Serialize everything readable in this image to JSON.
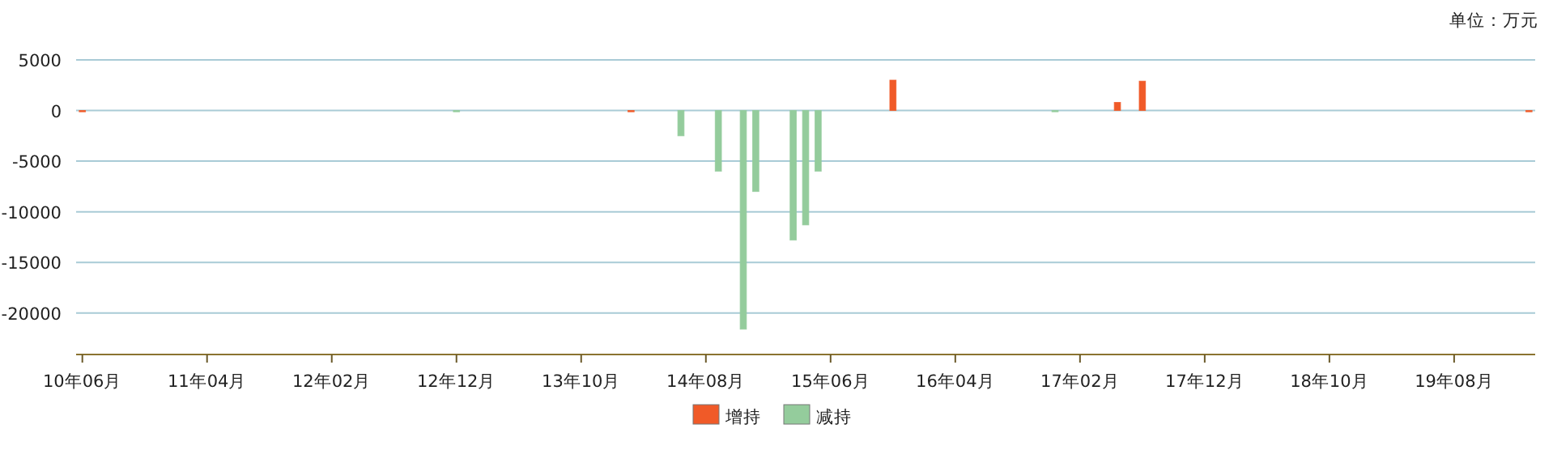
{
  "chart_data": {
    "type": "bar",
    "grid": "y",
    "legend": "bottom",
    "annotations": [
      "单位：万元"
    ],
    "ylim": [
      -24100,
      5000
    ],
    "yticks": [
      5000,
      0,
      -5000,
      -10000,
      -15000,
      -20000
    ],
    "categories": [
      "10年06月",
      null,
      null,
      null,
      null,
      null,
      null,
      null,
      null,
      null,
      "11年04月",
      null,
      null,
      null,
      null,
      null,
      null,
      null,
      null,
      null,
      "12年02月",
      null,
      null,
      null,
      null,
      null,
      null,
      null,
      null,
      null,
      "12年12月",
      null,
      null,
      null,
      null,
      null,
      null,
      null,
      null,
      null,
      "13年10月",
      null,
      null,
      null,
      null,
      null,
      null,
      null,
      null,
      null,
      "14年08月",
      null,
      null,
      null,
      null,
      null,
      null,
      null,
      null,
      null,
      "15年06月",
      null,
      null,
      null,
      null,
      null,
      null,
      null,
      null,
      null,
      "16年04月",
      null,
      null,
      null,
      null,
      null,
      null,
      null,
      null,
      null,
      "17年02月",
      null,
      null,
      null,
      null,
      null,
      null,
      null,
      null,
      null,
      "17年12月",
      null,
      null,
      null,
      null,
      null,
      null,
      null,
      null,
      null,
      "18年10月",
      null,
      null,
      null,
      null,
      null,
      null,
      null,
      null,
      null,
      "19年08月",
      null,
      null,
      null,
      null,
      null,
      null
    ],
    "series": [
      {
        "name": "增持",
        "color": "#f05a28",
        "values": [
          0,
          null,
          null,
          null,
          null,
          null,
          null,
          null,
          null,
          null,
          null,
          null,
          null,
          null,
          null,
          null,
          null,
          null,
          null,
          null,
          null,
          null,
          null,
          null,
          null,
          null,
          null,
          null,
          null,
          null,
          null,
          null,
          null,
          null,
          null,
          null,
          null,
          null,
          null,
          null,
          null,
          null,
          null,
          null,
          0,
          null,
          null,
          null,
          null,
          null,
          null,
          null,
          null,
          null,
          null,
          null,
          null,
          null,
          null,
          null,
          null,
          null,
          null,
          null,
          null,
          3000,
          null,
          null,
          null,
          null,
          null,
          null,
          null,
          null,
          null,
          null,
          null,
          null,
          null,
          null,
          null,
          null,
          null,
          800,
          null,
          2900,
          null,
          null,
          null,
          null,
          null,
          null,
          null,
          null,
          null,
          null,
          null,
          null,
          null,
          null,
          null,
          null,
          null,
          null,
          null,
          null,
          null,
          null,
          null,
          null,
          null,
          null,
          null,
          null,
          null,
          null,
          0
        ]
      },
      {
        "name": "减持",
        "color": "#94cc9c",
        "values": [
          null,
          null,
          null,
          null,
          null,
          null,
          null,
          null,
          null,
          null,
          null,
          null,
          null,
          null,
          null,
          null,
          null,
          null,
          null,
          null,
          null,
          null,
          null,
          null,
          null,
          null,
          null,
          null,
          null,
          null,
          0,
          null,
          null,
          null,
          null,
          null,
          null,
          null,
          null,
          null,
          null,
          null,
          null,
          null,
          null,
          null,
          null,
          null,
          -2500,
          null,
          null,
          -6000,
          null,
          -21600,
          -8000,
          null,
          null,
          -12800,
          -11300,
          -6000,
          null,
          null,
          null,
          null,
          null,
          null,
          null,
          null,
          null,
          null,
          null,
          null,
          null,
          null,
          null,
          null,
          null,
          null,
          0,
          null,
          null,
          null,
          null,
          null,
          null,
          null,
          null,
          null,
          null,
          null,
          null,
          null,
          null,
          null,
          null,
          null,
          null,
          null,
          null,
          null,
          null,
          null,
          null,
          null,
          null,
          null,
          null,
          null,
          null,
          null,
          null,
          null,
          null,
          null,
          null,
          null,
          null
        ]
      }
    ]
  }
}
